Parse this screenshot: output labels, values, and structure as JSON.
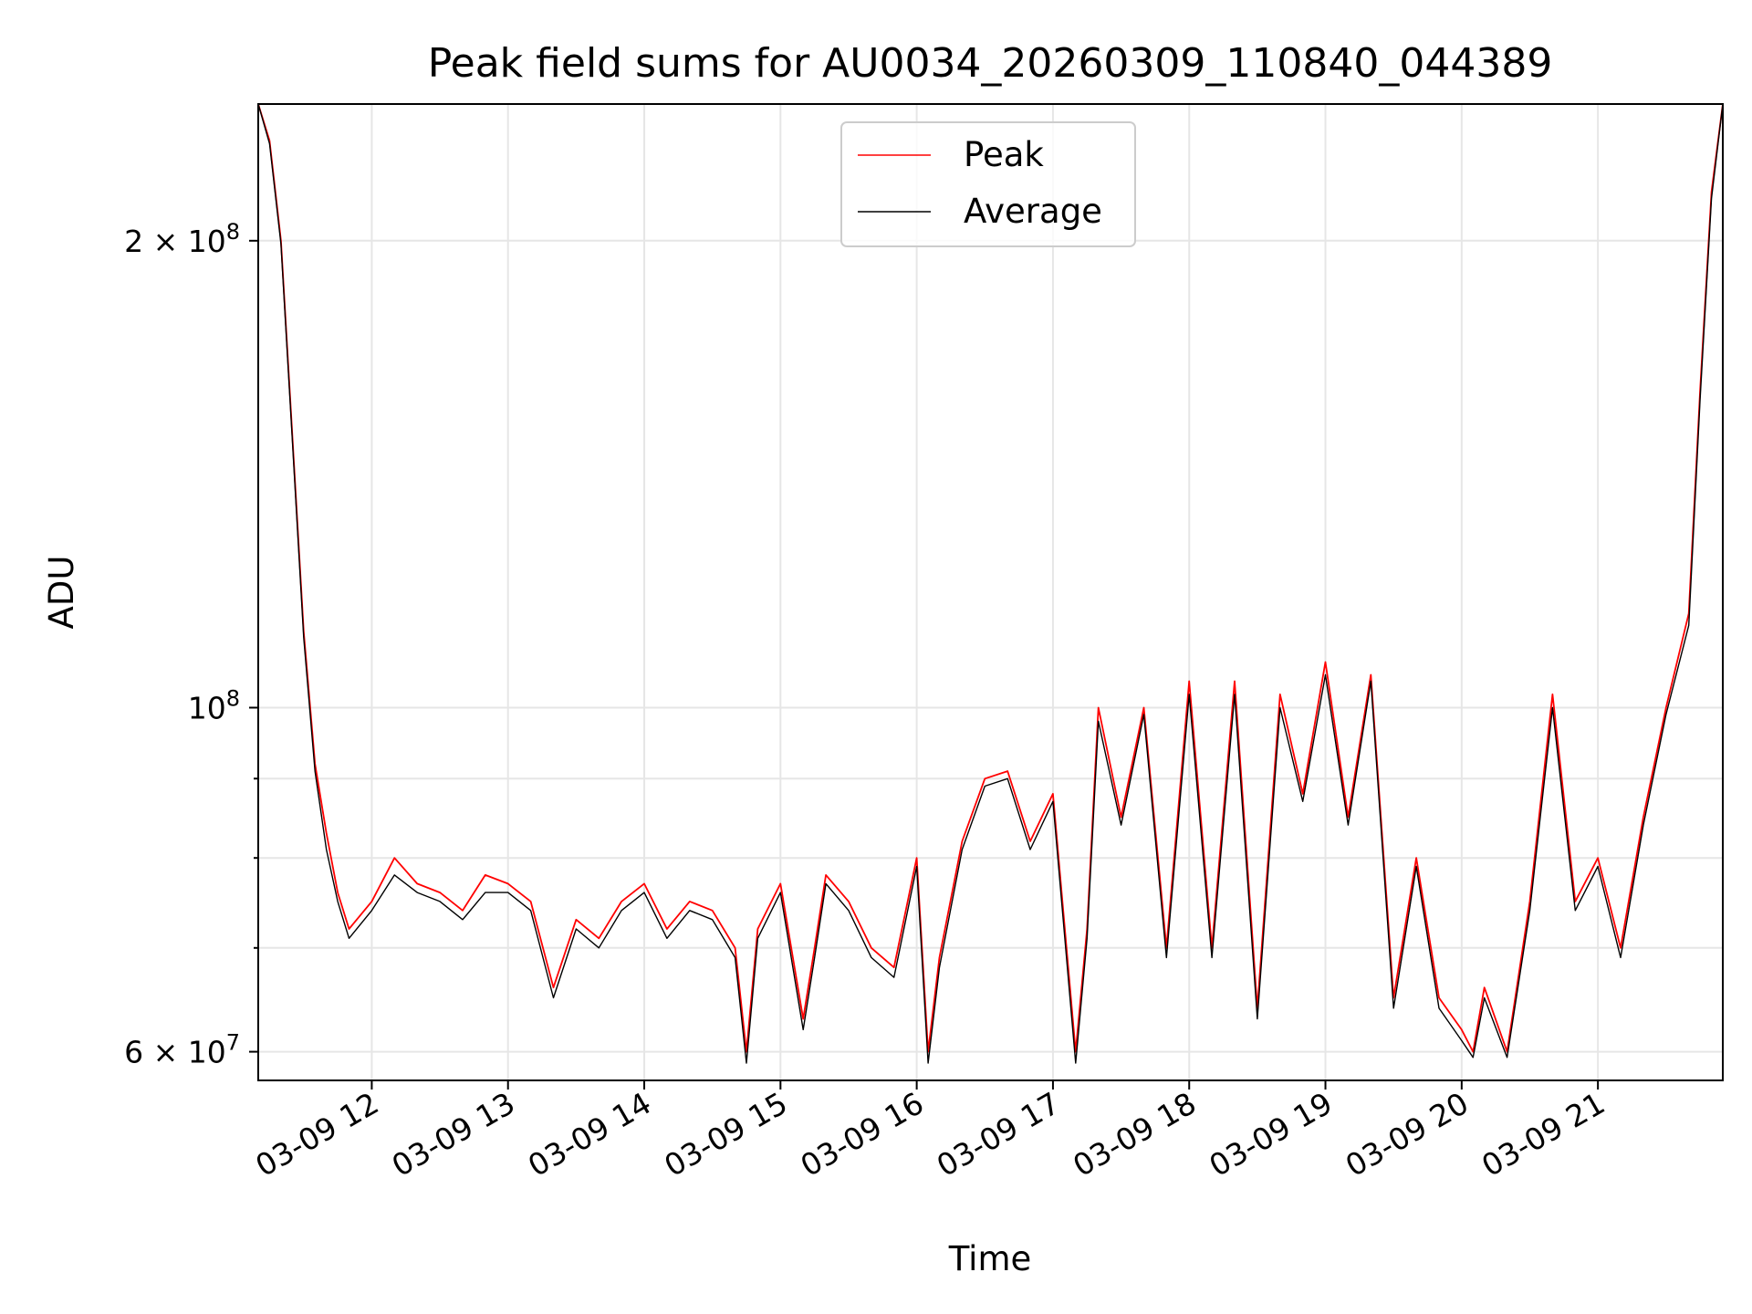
{
  "chart_data": {
    "type": "line",
    "title": "Peak field sums for AU0034_20260309_110840_044389",
    "xlabel": "Time",
    "ylabel": "ADU",
    "x_date": "2026-03-09",
    "xlim": [
      "11:10",
      "21:55"
    ],
    "ylim": [
      57500000,
      245000000
    ],
    "yscale": "log",
    "grid": true,
    "legend_position": "upper center",
    "x_ticks": [
      "03-09 12",
      "03-09 13",
      "03-09 14",
      "03-09 15",
      "03-09 16",
      "03-09 17",
      "03-09 18",
      "03-09 19",
      "03-09 20",
      "03-09 21"
    ],
    "y_major_ticks": [
      {
        "value": 60000000,
        "base": "6",
        "exp": "7"
      },
      {
        "value": 100000000,
        "base": "",
        "exp": "8"
      },
      {
        "value": 200000000,
        "base": "2",
        "exp": "8"
      }
    ],
    "y_minor_ticks": [
      70000000,
      80000000,
      90000000
    ],
    "series": [
      {
        "name": "Peak",
        "color": "#ff0000",
        "x": [
          "11:10",
          "11:15",
          "11:20",
          "11:25",
          "11:30",
          "11:35",
          "11:40",
          "11:45",
          "11:50",
          "12:00",
          "12:10",
          "12:20",
          "12:30",
          "12:40",
          "12:50",
          "13:00",
          "13:10",
          "13:20",
          "13:30",
          "13:40",
          "13:50",
          "14:00",
          "14:10",
          "14:20",
          "14:30",
          "14:40",
          "14:45",
          "14:50",
          "15:00",
          "15:10",
          "15:15",
          "15:20",
          "15:30",
          "15:40",
          "15:50",
          "16:00",
          "16:05",
          "16:10",
          "16:20",
          "16:30",
          "16:40",
          "16:50",
          "17:00",
          "17:10",
          "17:15",
          "17:20",
          "17:30",
          "17:40",
          "17:50",
          "18:00",
          "18:10",
          "18:20",
          "18:30",
          "18:40",
          "18:50",
          "19:00",
          "19:10",
          "19:20",
          "19:30",
          "19:40",
          "19:50",
          "20:00",
          "20:05",
          "20:10",
          "20:20",
          "20:30",
          "20:40",
          "20:50",
          "21:00",
          "21:10",
          "21:20",
          "21:30",
          "21:40",
          "21:45",
          "21:50",
          "21:55"
        ],
        "values": [
          245000000,
          232000000,
          200000000,
          150000000,
          112000000,
          92000000,
          83000000,
          76000000,
          72000000,
          75000000,
          80000000,
          77000000,
          76000000,
          74000000,
          78000000,
          77000000,
          75000000,
          66000000,
          73000000,
          71000000,
          75000000,
          77000000,
          72000000,
          75000000,
          74000000,
          70000000,
          60000000,
          72000000,
          77000000,
          63000000,
          70000000,
          78000000,
          75000000,
          70000000,
          68000000,
          80000000,
          60000000,
          69000000,
          82000000,
          90000000,
          91000000,
          82000000,
          88000000,
          60000000,
          72000000,
          100000000,
          85000000,
          100000000,
          70000000,
          104000000,
          70000000,
          104000000,
          64000000,
          102000000,
          88000000,
          107000000,
          85000000,
          105000000,
          65000000,
          80000000,
          65000000,
          62000000,
          60000000,
          66000000,
          60000000,
          75000000,
          102000000,
          75000000,
          80000000,
          70000000,
          85000000,
          100000000,
          115000000,
          160000000,
          215000000,
          245000000
        ]
      },
      {
        "name": "Average",
        "color": "#000000",
        "x": [
          "11:10",
          "11:15",
          "11:20",
          "11:25",
          "11:30",
          "11:35",
          "11:40",
          "11:45",
          "11:50",
          "12:00",
          "12:10",
          "12:20",
          "12:30",
          "12:40",
          "12:50",
          "13:00",
          "13:10",
          "13:20",
          "13:30",
          "13:40",
          "13:50",
          "14:00",
          "14:10",
          "14:20",
          "14:30",
          "14:40",
          "14:45",
          "14:50",
          "15:00",
          "15:10",
          "15:15",
          "15:20",
          "15:30",
          "15:40",
          "15:50",
          "16:00",
          "16:05",
          "16:10",
          "16:20",
          "16:30",
          "16:40",
          "16:50",
          "17:00",
          "17:10",
          "17:15",
          "17:20",
          "17:30",
          "17:40",
          "17:50",
          "18:00",
          "18:10",
          "18:20",
          "18:30",
          "18:40",
          "18:50",
          "19:00",
          "19:10",
          "19:20",
          "19:30",
          "19:40",
          "19:50",
          "20:00",
          "20:05",
          "20:10",
          "20:20",
          "20:30",
          "20:40",
          "20:50",
          "21:00",
          "21:10",
          "21:20",
          "21:30",
          "21:40",
          "21:45",
          "21:50",
          "21:55"
        ],
        "values": [
          245000000,
          231000000,
          199000000,
          149000000,
          111000000,
          91000000,
          81000000,
          75000000,
          71000000,
          74000000,
          78000000,
          76000000,
          75000000,
          73000000,
          76000000,
          76000000,
          74000000,
          65000000,
          72000000,
          70000000,
          74000000,
          76000000,
          71000000,
          74000000,
          73000000,
          69000000,
          59000000,
          71000000,
          76000000,
          62000000,
          69000000,
          77000000,
          74000000,
          69000000,
          67000000,
          79000000,
          59000000,
          68000000,
          81000000,
          89000000,
          90000000,
          81000000,
          87000000,
          59000000,
          71000000,
          98000000,
          84000000,
          99000000,
          69000000,
          102000000,
          69000000,
          102000000,
          63000000,
          100000000,
          87000000,
          105000000,
          84000000,
          104000000,
          64000000,
          79000000,
          64000000,
          61000000,
          59500000,
          65000000,
          59500000,
          74000000,
          100000000,
          74000000,
          79000000,
          69000000,
          84000000,
          99000000,
          113000000,
          158000000,
          213000000,
          245000000
        ]
      }
    ]
  }
}
